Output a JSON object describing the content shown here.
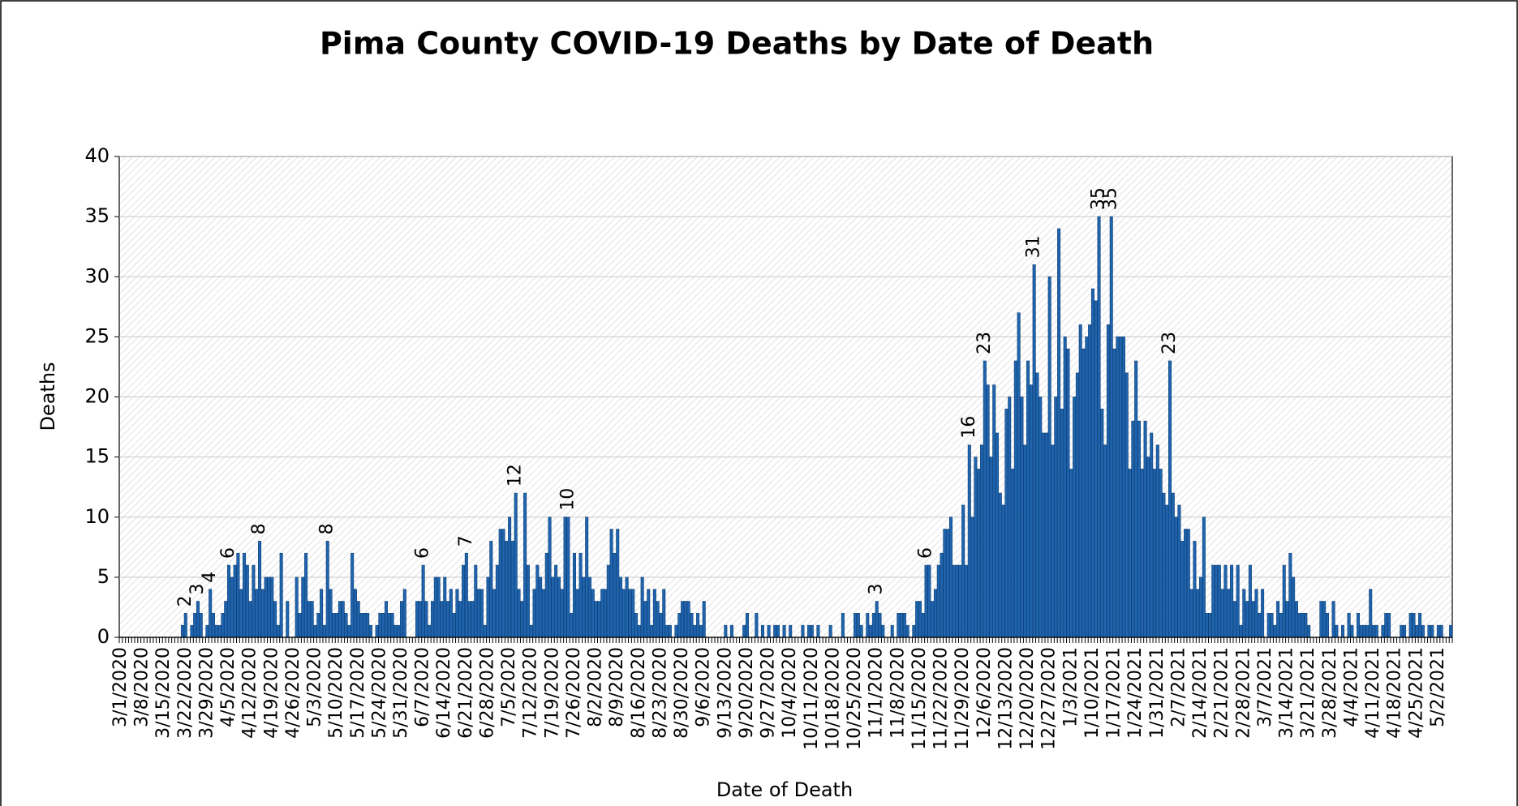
{
  "chart_data": {
    "type": "bar",
    "title": "Pima County COVID-19 Deaths by Date of Death",
    "x_label": "Date of Death",
    "y_label": "Deaths",
    "color": "#1f64ad",
    "edge_color": "#0d3f78",
    "grid": true,
    "ylim": [
      0,
      40
    ],
    "yticks": [
      0,
      5,
      10,
      15,
      20,
      25,
      30,
      35,
      40
    ],
    "categories": [
      "3/1/2020",
      null,
      null,
      null,
      null,
      null,
      null,
      "3/8/2020",
      null,
      null,
      null,
      null,
      null,
      null,
      "3/15/2020",
      null,
      null,
      null,
      null,
      null,
      null,
      "3/22/2020",
      null,
      null,
      null,
      null,
      null,
      null,
      "3/29/2020",
      null,
      null,
      null,
      null,
      null,
      null,
      "4/5/2020",
      null,
      null,
      null,
      null,
      null,
      null,
      "4/12/2020",
      null,
      null,
      null,
      null,
      null,
      null,
      "4/19/2020",
      null,
      null,
      null,
      null,
      null,
      null,
      "4/26/2020",
      null,
      null,
      null,
      null,
      null,
      null,
      "5/3/2020",
      null,
      null,
      null,
      null,
      null,
      null,
      "5/10/2020",
      null,
      null,
      null,
      null,
      null,
      null,
      "5/17/2020",
      null,
      null,
      null,
      null,
      null,
      null,
      "5/24/2020",
      null,
      null,
      null,
      null,
      null,
      null,
      "5/31/2020",
      null,
      null,
      null,
      null,
      null,
      null,
      "6/7/2020",
      null,
      null,
      null,
      null,
      null,
      null,
      "6/14/2020",
      null,
      null,
      null,
      null,
      null,
      null,
      "6/21/2020",
      null,
      null,
      null,
      null,
      null,
      null,
      "6/28/2020",
      null,
      null,
      null,
      null,
      null,
      null,
      "7/5/2020",
      null,
      null,
      null,
      null,
      null,
      null,
      "7/12/2020",
      null,
      null,
      null,
      null,
      null,
      null,
      "7/19/2020",
      null,
      null,
      null,
      null,
      null,
      null,
      "7/26/2020",
      null,
      null,
      null,
      null,
      null,
      null,
      "8/2/2020",
      null,
      null,
      null,
      null,
      null,
      null,
      "8/9/2020",
      null,
      null,
      null,
      null,
      null,
      null,
      "8/16/2020",
      null,
      null,
      null,
      null,
      null,
      null,
      "8/23/2020",
      null,
      null,
      null,
      null,
      null,
      null,
      "8/30/2020",
      null,
      null,
      null,
      null,
      null,
      null,
      "9/6/2020",
      null,
      null,
      null,
      null,
      null,
      null,
      "9/13/2020",
      null,
      null,
      null,
      null,
      null,
      null,
      "9/20/2020",
      null,
      null,
      null,
      null,
      null,
      null,
      "9/27/2020",
      null,
      null,
      null,
      null,
      null,
      null,
      "10/4/2020",
      null,
      null,
      null,
      null,
      null,
      null,
      "10/11/2020",
      null,
      null,
      null,
      null,
      null,
      null,
      "10/18/2020",
      null,
      null,
      null,
      null,
      null,
      null,
      "10/25/2020",
      null,
      null,
      null,
      null,
      null,
      null,
      "11/1/2020",
      null,
      null,
      null,
      null,
      null,
      null,
      "11/8/2020",
      null,
      null,
      null,
      null,
      null,
      null,
      "11/15/2020",
      null,
      null,
      null,
      null,
      null,
      null,
      "11/22/2020",
      null,
      null,
      null,
      null,
      null,
      null,
      "11/29/2020",
      null,
      null,
      null,
      null,
      null,
      null,
      "12/6/2020",
      null,
      null,
      null,
      null,
      null,
      null,
      "12/13/2020",
      null,
      null,
      null,
      null,
      null,
      null,
      "12/20/2020",
      null,
      null,
      null,
      null,
      null,
      null,
      "12/27/2020",
      null,
      null,
      null,
      null,
      null,
      null,
      "1/3/2021",
      null,
      null,
      null,
      null,
      null,
      null,
      "1/10/2021",
      null,
      null,
      null,
      null,
      null,
      null,
      "1/17/2021",
      null,
      null,
      null,
      null,
      null,
      null,
      "1/24/2021",
      null,
      null,
      null,
      null,
      null,
      null,
      "1/31/2021",
      null,
      null,
      null,
      null,
      null,
      null,
      "2/7/2021",
      null,
      null,
      null,
      null,
      null,
      null,
      "2/14/2021",
      null,
      null,
      null,
      null,
      null,
      null,
      "2/21/2021",
      null,
      null,
      null,
      null,
      null,
      null,
      "2/28/2021",
      null,
      null,
      null,
      null,
      null,
      null,
      "3/7/2021",
      null,
      null,
      null,
      null,
      null,
      null,
      "3/14/2021",
      null,
      null,
      null,
      null,
      null,
      null,
      "3/21/2021",
      null,
      null,
      null,
      null,
      null,
      null,
      "3/28/2021",
      null,
      null,
      null,
      null,
      null,
      null,
      "4/4/2021",
      null,
      null,
      null,
      null,
      null,
      null,
      "4/11/2021",
      null,
      null,
      null,
      null,
      null,
      null,
      "4/18/2021",
      null,
      null,
      null,
      null,
      null,
      null,
      "4/25/2021",
      null,
      null,
      null,
      null,
      null,
      null,
      "5/2/2021",
      null,
      null,
      null,
      null
    ],
    "values": [
      0,
      0,
      0,
      0,
      0,
      0,
      0,
      0,
      0,
      0,
      0,
      0,
      0,
      0,
      0,
      0,
      0,
      0,
      0,
      0,
      1,
      2,
      0,
      1,
      2,
      3,
      2,
      0,
      1,
      4,
      2,
      1,
      1,
      2,
      3,
      6,
      5,
      6,
      7,
      4,
      7,
      6,
      3,
      6,
      4,
      8,
      4,
      5,
      5,
      5,
      3,
      1,
      7,
      0,
      3,
      0,
      0,
      5,
      2,
      5,
      7,
      3,
      3,
      1,
      2,
      4,
      1,
      8,
      4,
      2,
      2,
      3,
      3,
      2,
      1,
      7,
      4,
      3,
      2,
      2,
      2,
      1,
      0,
      1,
      2,
      2,
      3,
      2,
      2,
      1,
      1,
      3,
      4,
      0,
      0,
      0,
      3,
      3,
      6,
      3,
      1,
      3,
      5,
      5,
      3,
      5,
      3,
      4,
      2,
      4,
      3,
      6,
      7,
      3,
      3,
      6,
      4,
      4,
      1,
      5,
      8,
      4,
      6,
      9,
      9,
      8,
      10,
      8,
      12,
      4,
      3,
      12,
      6,
      1,
      4,
      6,
      5,
      4,
      7,
      10,
      5,
      6,
      5,
      4,
      10,
      10,
      2,
      7,
      4,
      7,
      5,
      10,
      5,
      4,
      3,
      3,
      4,
      4,
      6,
      9,
      7,
      9,
      5,
      4,
      5,
      4,
      4,
      2,
      1,
      5,
      3,
      4,
      1,
      4,
      3,
      2,
      4,
      1,
      1,
      0,
      1,
      2,
      3,
      3,
      3,
      2,
      1,
      2,
      1,
      3,
      0,
      0,
      0,
      0,
      0,
      0,
      1,
      0,
      1,
      0,
      0,
      0,
      1,
      2,
      0,
      0,
      2,
      0,
      1,
      0,
      1,
      0,
      1,
      1,
      0,
      1,
      0,
      1,
      0,
      0,
      0,
      1,
      0,
      1,
      1,
      0,
      1,
      0,
      0,
      0,
      1,
      0,
      0,
      0,
      2,
      0,
      0,
      0,
      2,
      2,
      1,
      0,
      2,
      1,
      2,
      3,
      2,
      1,
      0,
      0,
      1,
      0,
      2,
      2,
      2,
      1,
      0,
      1,
      3,
      3,
      2,
      6,
      6,
      3,
      4,
      6,
      7,
      9,
      9,
      10,
      6,
      6,
      6,
      11,
      6,
      16,
      10,
      15,
      14,
      16,
      23,
      21,
      15,
      21,
      17,
      12,
      11,
      19,
      20,
      14,
      23,
      27,
      20,
      16,
      23,
      21,
      31,
      22,
      20,
      17,
      17,
      30,
      16,
      20,
      34,
      19,
      25,
      24,
      14,
      20,
      22,
      26,
      24,
      25,
      26,
      29,
      28,
      35,
      19,
      16,
      26,
      35,
      24,
      25,
      25,
      25,
      22,
      14,
      18,
      23,
      18,
      14,
      18,
      15,
      17,
      14,
      16,
      14,
      12,
      11,
      23,
      12,
      10,
      11,
      8,
      9,
      9,
      4,
      8,
      4,
      5,
      10,
      2,
      2,
      6,
      6,
      6,
      4,
      6,
      4,
      6,
      3,
      6,
      1,
      4,
      3,
      6,
      3,
      4,
      2,
      4,
      0,
      2,
      2,
      1,
      3,
      2,
      6,
      3,
      7,
      5,
      3,
      2,
      2,
      2,
      1,
      0,
      0,
      0,
      3,
      3,
      2,
      0,
      3,
      1,
      0,
      1,
      0,
      2,
      1,
      0,
      2,
      1,
      1,
      1,
      4,
      1,
      1,
      0,
      1,
      2,
      2,
      0,
      0,
      0,
      1,
      1,
      0,
      2,
      2,
      1,
      2,
      1,
      0,
      1,
      1,
      0,
      1,
      1,
      0,
      0,
      1
    ],
    "value_labels": [
      null,
      null,
      null,
      null,
      null,
      null,
      null,
      null,
      null,
      null,
      null,
      null,
      null,
      null,
      null,
      null,
      null,
      null,
      null,
      null,
      null,
      "2",
      null,
      null,
      null,
      "3",
      null,
      null,
      null,
      "4",
      null,
      null,
      null,
      null,
      null,
      "6",
      null,
      null,
      null,
      null,
      null,
      null,
      null,
      null,
      null,
      "8",
      null,
      null,
      null,
      null,
      null,
      null,
      null,
      null,
      null,
      null,
      null,
      null,
      null,
      null,
      null,
      null,
      null,
      null,
      null,
      null,
      null,
      "8",
      null,
      null,
      null,
      null,
      null,
      null,
      null,
      null,
      null,
      null,
      null,
      null,
      null,
      null,
      null,
      null,
      null,
      null,
      null,
      null,
      null,
      null,
      null,
      null,
      null,
      null,
      null,
      null,
      null,
      null,
      "6",
      null,
      null,
      null,
      null,
      null,
      null,
      null,
      null,
      null,
      null,
      null,
      null,
      null,
      "7",
      null,
      null,
      null,
      null,
      null,
      null,
      null,
      null,
      null,
      null,
      null,
      null,
      null,
      null,
      null,
      "12",
      null,
      null,
      null,
      null,
      null,
      null,
      null,
      null,
      null,
      null,
      null,
      null,
      null,
      null,
      null,
      null,
      "10",
      null,
      null,
      null,
      null,
      null,
      null,
      null,
      null,
      null,
      null,
      null,
      null,
      null,
      null,
      null,
      null,
      null,
      null,
      null,
      null,
      null,
      null,
      null,
      null,
      null,
      null,
      null,
      null,
      null,
      null,
      null,
      null,
      null,
      null,
      null,
      null,
      null,
      null,
      null,
      null,
      null,
      null,
      null,
      null,
      null,
      null,
      null,
      null,
      null,
      null,
      null,
      null,
      null,
      null,
      null,
      null,
      null,
      null,
      null,
      null,
      null,
      null,
      null,
      null,
      null,
      null,
      null,
      null,
      null,
      null,
      null,
      null,
      null,
      null,
      null,
      null,
      null,
      null,
      null,
      null,
      null,
      null,
      null,
      null,
      null,
      null,
      null,
      null,
      null,
      null,
      null,
      null,
      null,
      null,
      null,
      null,
      null,
      null,
      null,
      "3",
      null,
      null,
      null,
      null,
      null,
      null,
      null,
      null,
      null,
      null,
      null,
      null,
      null,
      null,
      null,
      "6",
      null,
      null,
      null,
      null,
      null,
      null,
      null,
      null,
      null,
      null,
      null,
      null,
      null,
      "16",
      null,
      null,
      null,
      null,
      "23",
      null,
      null,
      null,
      null,
      null,
      null,
      null,
      null,
      null,
      null,
      null,
      null,
      null,
      null,
      null,
      "31",
      null,
      null,
      null,
      null,
      null,
      null,
      null,
      null,
      null,
      null,
      null,
      null,
      null,
      null,
      null,
      null,
      null,
      null,
      null,
      null,
      "35",
      null,
      null,
      null,
      "35",
      null,
      null,
      null,
      null,
      null,
      null,
      null,
      null,
      null,
      null,
      null,
      null,
      null,
      null,
      null,
      null,
      null,
      null,
      "23",
      null,
      null,
      null,
      null,
      null,
      null,
      null,
      null,
      null,
      null,
      null,
      null,
      null,
      null,
      null,
      null,
      null,
      null,
      null,
      null,
      null,
      null,
      null,
      null,
      null,
      null,
      null,
      null,
      null,
      null,
      null,
      null,
      null,
      null,
      null,
      null,
      null,
      null,
      null,
      null,
      null,
      null,
      null,
      null,
      null,
      null,
      null,
      null,
      null,
      null,
      null,
      null,
      null,
      null,
      null,
      null,
      null,
      null,
      null,
      null,
      null,
      null,
      null,
      null,
      null,
      null,
      null,
      null,
      null,
      null,
      null,
      null,
      null,
      null,
      null,
      null,
      null,
      null,
      null,
      null,
      null,
      null,
      null,
      null,
      null,
      null,
      null,
      null,
      null,
      null,
      null
    ]
  }
}
